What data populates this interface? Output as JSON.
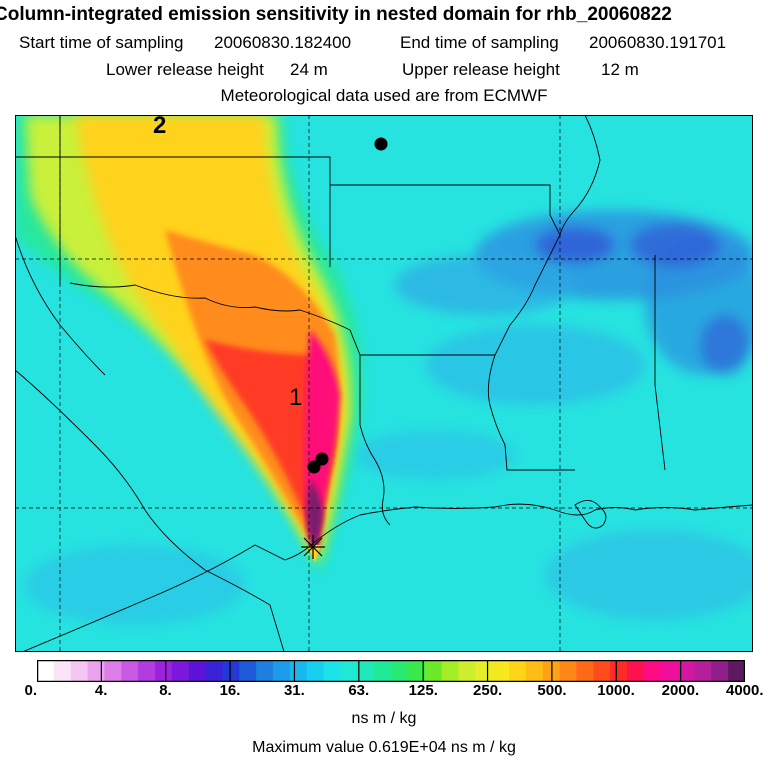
{
  "header": {
    "title": "Column-integrated emission sensitivity in nested domain for rhb_20060822",
    "start_label": "Start time of sampling",
    "start_value": "20060830.182400",
    "end_label": "End time of sampling",
    "end_value": "20060830.191701",
    "lower_label": "Lower release height",
    "lower_value": "24 m",
    "upper_label": "Upper release height",
    "upper_value": "12 m",
    "met_line": "Meteorological data used are from ECMWF"
  },
  "map": {
    "labels": [
      "1",
      "2"
    ],
    "background_color": "#27e3e0",
    "plume_colors": [
      "#26e79e",
      "#c9f03a",
      "#ffd21a",
      "#ff8c1f",
      "#ff3a28",
      "#ff1178",
      "#7a1f6e"
    ]
  },
  "colorbar": {
    "ticks": [
      "0.",
      "4.",
      "8.",
      "16.",
      "31.",
      "63.",
      "125.",
      "250.",
      "500.",
      "1000.",
      "2000.",
      "4000."
    ],
    "colors": [
      "#ffffff",
      "#fbe4f7",
      "#f5c6f2",
      "#eaa2ee",
      "#dd7de8",
      "#c95ae3",
      "#b33be0",
      "#9b23dd",
      "#7c18db",
      "#5d14d8",
      "#3a22d6",
      "#2438d8",
      "#1f5ad8",
      "#1f7fe0",
      "#1c9ce8",
      "#18b8ee",
      "#17d0ef",
      "#1ce2ea",
      "#1fe8d3",
      "#1fe9b6",
      "#20ea98",
      "#27ea72",
      "#3ae94a",
      "#6cea2a",
      "#a4ec26",
      "#cdee2c",
      "#e6ee2a",
      "#f7e91f",
      "#ffd51a",
      "#ffbd16",
      "#ffa216",
      "#ff8717",
      "#ff6a18",
      "#ff4c1d",
      "#ff2c25",
      "#ff1150",
      "#ff0c84",
      "#ef0f9a",
      "#d417a2",
      "#b51f9c",
      "#901f8a",
      "#5e1a60"
    ],
    "units": "ns m / kg"
  },
  "footer": {
    "max_value": "Maximum value  0.619E+04 ns m / kg"
  }
}
